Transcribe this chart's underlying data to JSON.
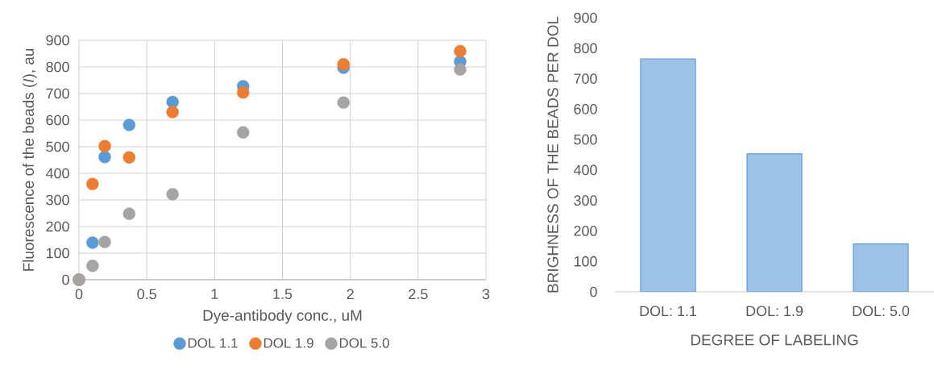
{
  "chart_data": [
    {
      "type": "scatter",
      "xlabel": "Dye-antibody conc., uM",
      "ylabel": "Fluorescence of the beads (*I*), au",
      "x": [
        0,
        0.1,
        0.19,
        0.37,
        0.69,
        1.21,
        1.95,
        2.81
      ],
      "series": [
        {
          "name": "DOL 1.1",
          "color": "#5b9bd5",
          "values": [
            0,
            139,
            461,
            582,
            668,
            727,
            797,
            820
          ]
        },
        {
          "name": "DOL 1.9",
          "color": "#ed7d31",
          "values": [
            0,
            360,
            502,
            460,
            630,
            704,
            810,
            859
          ]
        },
        {
          "name": "DOL 5.0",
          "color": "#a5a5a5",
          "values": [
            0,
            52,
            142,
            248,
            321,
            554,
            666,
            790
          ]
        }
      ],
      "xlim": [
        0,
        3
      ],
      "xticks": [
        0,
        0.5,
        1,
        1.5,
        2,
        2.5,
        3
      ],
      "ylim": [
        0,
        900
      ],
      "yticks": [
        0,
        100,
        200,
        300,
        400,
        500,
        600,
        700,
        800,
        900
      ],
      "grid": true,
      "legend": "bottom",
      "marker": "circle"
    },
    {
      "type": "bar",
      "xlabel": "DEGREE OF LABELING",
      "ylabel": "BRIGHNESS OF THE BEADS PER DOL",
      "categories": [
        "DOL: 1.1",
        "DOL: 1.9",
        "DOL: 5.0"
      ],
      "values": [
        765,
        453,
        157
      ],
      "color": "#9dc3e6",
      "ylim": [
        0,
        900
      ],
      "yticks": [
        0,
        100,
        200,
        300,
        400,
        500,
        600,
        700,
        800,
        900
      ],
      "grid": false
    }
  ]
}
